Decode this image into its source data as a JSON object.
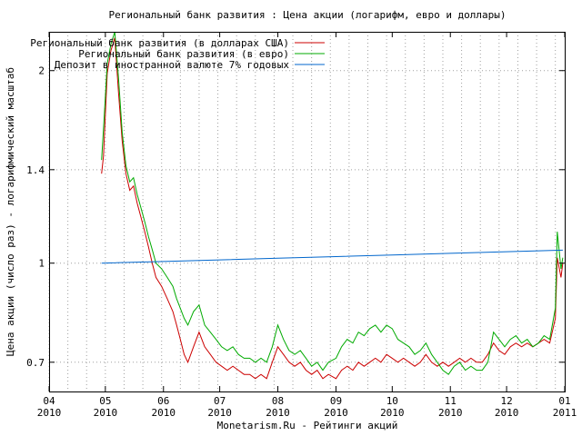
{
  "chart_data": {
    "type": "line",
    "title": "Региональный банк развития : Цена акции (логарифм, евро и доллары)",
    "xlabel": "Monetarism.Ru - Рейтинги акций",
    "ylabel": "Цена акции (число раз) - логарифмический масштаб",
    "y_scale": "log",
    "ylim": [
      0.63,
      2.3
    ],
    "yticks": [
      0.7,
      1,
      1.4,
      2
    ],
    "ytick_labels": [
      "0.7",
      "1",
      "1.4",
      "2"
    ],
    "xlim": [
      "2010-04-01",
      "2011-01-01"
    ],
    "xticks": [
      {
        "date": "2010-04-01",
        "month": "04",
        "year": "2010"
      },
      {
        "date": "2010-05-01",
        "month": "05",
        "year": "2010"
      },
      {
        "date": "2010-06-01",
        "month": "06",
        "year": "2010"
      },
      {
        "date": "2010-07-01",
        "month": "07",
        "year": "2010"
      },
      {
        "date": "2010-08-01",
        "month": "08",
        "year": "2010"
      },
      {
        "date": "2010-09-01",
        "month": "09",
        "year": "2010"
      },
      {
        "date": "2010-10-01",
        "month": "10",
        "year": "2010"
      },
      {
        "date": "2010-11-01",
        "month": "11",
        "year": "2010"
      },
      {
        "date": "2010-12-01",
        "month": "12",
        "year": "2010"
      },
      {
        "date": "2011-01-01",
        "month": "01",
        "year": "2011"
      }
    ],
    "grid": true,
    "legend_position": "top-left",
    "series": [
      {
        "name": "Региональный банк развития (в долларах США)",
        "color": "#cc0000",
        "points": [
          [
            "2010-04-29",
            1.38
          ],
          [
            "2010-04-30",
            1.47
          ],
          [
            "2010-05-02",
            1.98
          ],
          [
            "2010-05-04",
            2.15
          ],
          [
            "2010-05-06",
            2.25
          ],
          [
            "2010-05-08",
            1.85
          ],
          [
            "2010-05-10",
            1.55
          ],
          [
            "2010-05-12",
            1.38
          ],
          [
            "2010-05-14",
            1.3
          ],
          [
            "2010-05-16",
            1.32
          ],
          [
            "2010-05-18",
            1.24
          ],
          [
            "2010-05-20",
            1.18
          ],
          [
            "2010-05-22",
            1.12
          ],
          [
            "2010-05-24",
            1.06
          ],
          [
            "2010-05-26",
            1.0
          ],
          [
            "2010-05-28",
            0.95
          ],
          [
            "2010-05-31",
            0.92
          ],
          [
            "2010-06-03",
            0.88
          ],
          [
            "2010-06-06",
            0.84
          ],
          [
            "2010-06-08",
            0.8
          ],
          [
            "2010-06-10",
            0.76
          ],
          [
            "2010-06-12",
            0.72
          ],
          [
            "2010-06-14",
            0.7
          ],
          [
            "2010-06-17",
            0.74
          ],
          [
            "2010-06-20",
            0.78
          ],
          [
            "2010-06-23",
            0.74
          ],
          [
            "2010-06-26",
            0.72
          ],
          [
            "2010-06-29",
            0.7
          ],
          [
            "2010-07-02",
            0.69
          ],
          [
            "2010-07-05",
            0.68
          ],
          [
            "2010-07-08",
            0.69
          ],
          [
            "2010-07-11",
            0.68
          ],
          [
            "2010-07-14",
            0.67
          ],
          [
            "2010-07-17",
            0.67
          ],
          [
            "2010-07-20",
            0.66
          ],
          [
            "2010-07-23",
            0.67
          ],
          [
            "2010-07-26",
            0.66
          ],
          [
            "2010-07-29",
            0.7
          ],
          [
            "2010-08-01",
            0.74
          ],
          [
            "2010-08-04",
            0.72
          ],
          [
            "2010-08-07",
            0.7
          ],
          [
            "2010-08-10",
            0.69
          ],
          [
            "2010-08-13",
            0.7
          ],
          [
            "2010-08-16",
            0.68
          ],
          [
            "2010-08-19",
            0.67
          ],
          [
            "2010-08-22",
            0.68
          ],
          [
            "2010-08-25",
            0.66
          ],
          [
            "2010-08-28",
            0.67
          ],
          [
            "2010-09-01",
            0.66
          ],
          [
            "2010-09-04",
            0.68
          ],
          [
            "2010-09-07",
            0.69
          ],
          [
            "2010-09-10",
            0.68
          ],
          [
            "2010-09-13",
            0.7
          ],
          [
            "2010-09-16",
            0.69
          ],
          [
            "2010-09-19",
            0.7
          ],
          [
            "2010-09-22",
            0.71
          ],
          [
            "2010-09-25",
            0.7
          ],
          [
            "2010-09-28",
            0.72
          ],
          [
            "2010-10-01",
            0.71
          ],
          [
            "2010-10-04",
            0.7
          ],
          [
            "2010-10-07",
            0.71
          ],
          [
            "2010-10-10",
            0.7
          ],
          [
            "2010-10-13",
            0.69
          ],
          [
            "2010-10-16",
            0.7
          ],
          [
            "2010-10-19",
            0.72
          ],
          [
            "2010-10-22",
            0.7
          ],
          [
            "2010-10-25",
            0.69
          ],
          [
            "2010-10-28",
            0.7
          ],
          [
            "2010-10-31",
            0.69
          ],
          [
            "2010-11-03",
            0.7
          ],
          [
            "2010-11-06",
            0.71
          ],
          [
            "2010-11-09",
            0.7
          ],
          [
            "2010-11-12",
            0.71
          ],
          [
            "2010-11-15",
            0.7
          ],
          [
            "2010-11-18",
            0.7
          ],
          [
            "2010-11-21",
            0.72
          ],
          [
            "2010-11-24",
            0.75
          ],
          [
            "2010-11-27",
            0.73
          ],
          [
            "2010-11-30",
            0.72
          ],
          [
            "2010-12-03",
            0.74
          ],
          [
            "2010-12-06",
            0.75
          ],
          [
            "2010-12-09",
            0.74
          ],
          [
            "2010-12-12",
            0.75
          ],
          [
            "2010-12-15",
            0.74
          ],
          [
            "2010-12-18",
            0.75
          ],
          [
            "2010-12-21",
            0.76
          ],
          [
            "2010-12-24",
            0.75
          ],
          [
            "2010-12-27",
            0.82
          ],
          [
            "2010-12-28",
            1.02
          ],
          [
            "2010-12-30",
            0.95
          ],
          [
            "2010-12-31",
            1.0
          ]
        ]
      },
      {
        "name": "Региональный банк развития (в евро)",
        "color": "#00aa00",
        "points": [
          [
            "2010-04-29",
            1.45
          ],
          [
            "2010-04-30",
            1.62
          ],
          [
            "2010-05-02",
            2.05
          ],
          [
            "2010-05-04",
            2.2
          ],
          [
            "2010-05-06",
            2.3
          ],
          [
            "2010-05-08",
            1.95
          ],
          [
            "2010-05-10",
            1.6
          ],
          [
            "2010-05-12",
            1.42
          ],
          [
            "2010-05-14",
            1.34
          ],
          [
            "2010-05-16",
            1.36
          ],
          [
            "2010-05-18",
            1.28
          ],
          [
            "2010-05-20",
            1.22
          ],
          [
            "2010-05-22",
            1.16
          ],
          [
            "2010-05-24",
            1.1
          ],
          [
            "2010-05-26",
            1.05
          ],
          [
            "2010-05-28",
            1.0
          ],
          [
            "2010-05-31",
            0.98
          ],
          [
            "2010-06-03",
            0.95
          ],
          [
            "2010-06-06",
            0.92
          ],
          [
            "2010-06-08",
            0.88
          ],
          [
            "2010-06-10",
            0.85
          ],
          [
            "2010-06-12",
            0.82
          ],
          [
            "2010-06-14",
            0.8
          ],
          [
            "2010-06-17",
            0.84
          ],
          [
            "2010-06-20",
            0.86
          ],
          [
            "2010-06-23",
            0.8
          ],
          [
            "2010-06-26",
            0.78
          ],
          [
            "2010-06-29",
            0.76
          ],
          [
            "2010-07-02",
            0.74
          ],
          [
            "2010-07-05",
            0.73
          ],
          [
            "2010-07-08",
            0.74
          ],
          [
            "2010-07-11",
            0.72
          ],
          [
            "2010-07-14",
            0.71
          ],
          [
            "2010-07-17",
            0.71
          ],
          [
            "2010-07-20",
            0.7
          ],
          [
            "2010-07-23",
            0.71
          ],
          [
            "2010-07-26",
            0.7
          ],
          [
            "2010-07-29",
            0.74
          ],
          [
            "2010-08-01",
            0.8
          ],
          [
            "2010-08-04",
            0.76
          ],
          [
            "2010-08-07",
            0.73
          ],
          [
            "2010-08-10",
            0.72
          ],
          [
            "2010-08-13",
            0.73
          ],
          [
            "2010-08-16",
            0.71
          ],
          [
            "2010-08-19",
            0.69
          ],
          [
            "2010-08-22",
            0.7
          ],
          [
            "2010-08-25",
            0.68
          ],
          [
            "2010-08-28",
            0.7
          ],
          [
            "2010-09-01",
            0.71
          ],
          [
            "2010-09-04",
            0.74
          ],
          [
            "2010-09-07",
            0.76
          ],
          [
            "2010-09-10",
            0.75
          ],
          [
            "2010-09-13",
            0.78
          ],
          [
            "2010-09-16",
            0.77
          ],
          [
            "2010-09-19",
            0.79
          ],
          [
            "2010-09-22",
            0.8
          ],
          [
            "2010-09-25",
            0.78
          ],
          [
            "2010-09-28",
            0.8
          ],
          [
            "2010-10-01",
            0.79
          ],
          [
            "2010-10-04",
            0.76
          ],
          [
            "2010-10-07",
            0.75
          ],
          [
            "2010-10-10",
            0.74
          ],
          [
            "2010-10-13",
            0.72
          ],
          [
            "2010-10-16",
            0.73
          ],
          [
            "2010-10-19",
            0.75
          ],
          [
            "2010-10-22",
            0.72
          ],
          [
            "2010-10-25",
            0.7
          ],
          [
            "2010-10-28",
            0.68
          ],
          [
            "2010-10-31",
            0.67
          ],
          [
            "2010-11-03",
            0.69
          ],
          [
            "2010-11-06",
            0.7
          ],
          [
            "2010-11-09",
            0.68
          ],
          [
            "2010-11-12",
            0.69
          ],
          [
            "2010-11-15",
            0.68
          ],
          [
            "2010-11-18",
            0.68
          ],
          [
            "2010-11-21",
            0.7
          ],
          [
            "2010-11-24",
            0.78
          ],
          [
            "2010-11-27",
            0.76
          ],
          [
            "2010-11-30",
            0.74
          ],
          [
            "2010-12-03",
            0.76
          ],
          [
            "2010-12-06",
            0.77
          ],
          [
            "2010-12-09",
            0.75
          ],
          [
            "2010-12-12",
            0.76
          ],
          [
            "2010-12-15",
            0.74
          ],
          [
            "2010-12-18",
            0.75
          ],
          [
            "2010-12-21",
            0.77
          ],
          [
            "2010-12-24",
            0.76
          ],
          [
            "2010-12-27",
            0.85
          ],
          [
            "2010-12-28",
            1.12
          ],
          [
            "2010-12-30",
            0.98
          ],
          [
            "2010-12-31",
            1.02
          ]
        ]
      },
      {
        "name": "Депозит в иностранной валюте 7% годовых",
        "color": "#0066cc",
        "points": [
          [
            "2010-04-29",
            1.0
          ],
          [
            "2010-06-01",
            1.006
          ],
          [
            "2010-07-01",
            1.012
          ],
          [
            "2010-08-01",
            1.018
          ],
          [
            "2010-09-01",
            1.024
          ],
          [
            "2010-10-01",
            1.03
          ],
          [
            "2010-11-01",
            1.036
          ],
          [
            "2010-12-01",
            1.042
          ],
          [
            "2010-12-31",
            1.048
          ]
        ]
      }
    ]
  }
}
